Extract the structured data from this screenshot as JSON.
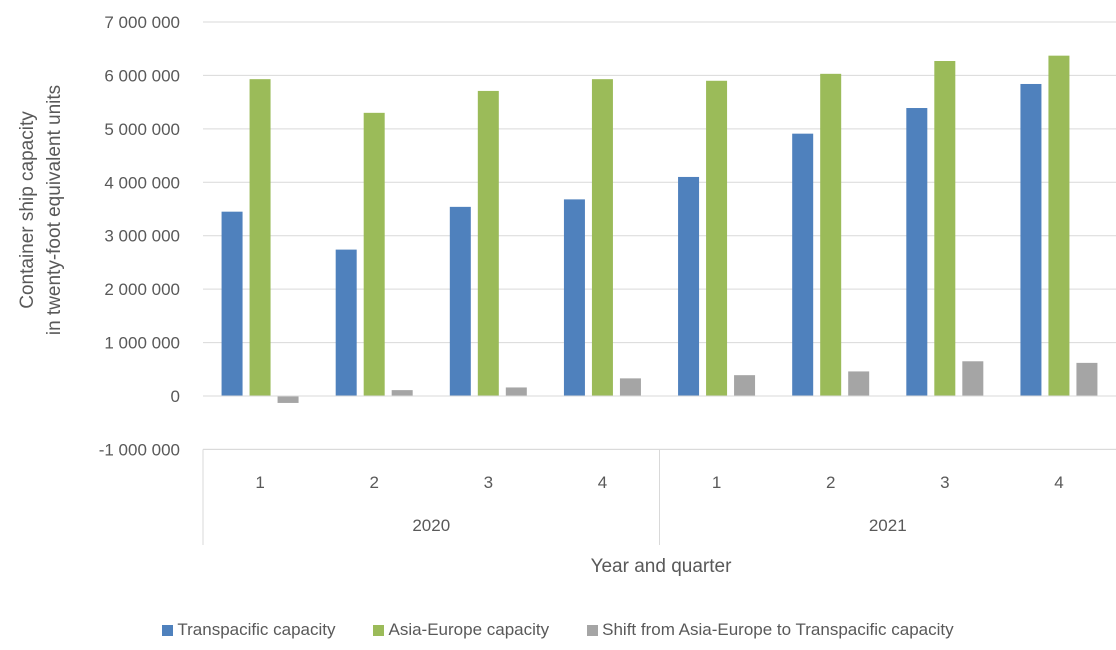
{
  "chart_data": {
    "type": "bar",
    "title": "",
    "xlabel": "Year and quarter",
    "ylabel_lines": [
      "Container ship capacity",
      "in twenty-foot equivalent units"
    ],
    "ylim": [
      -1000000,
      7000000
    ],
    "yticks": [
      -1000000,
      0,
      1000000,
      2000000,
      3000000,
      4000000,
      5000000,
      6000000,
      7000000
    ],
    "ytick_labels": [
      "-1 000 000",
      "0",
      "1 000 000",
      "2 000 000",
      "3 000 000",
      "4 000 000",
      "5 000 000",
      "6 000 000",
      "7 000 000"
    ],
    "categories": [
      "1",
      "2",
      "3",
      "4",
      "1",
      "2",
      "3",
      "4"
    ],
    "groups": [
      {
        "label": "2020",
        "span": 4
      },
      {
        "label": "2021",
        "span": 4
      }
    ],
    "grid": true,
    "legend_position": "bottom",
    "series": [
      {
        "name": "Transpacific capacity",
        "color": "#4f81bd",
        "values": [
          3450000,
          2740000,
          3540000,
          3680000,
          4100000,
          4910000,
          5390000,
          5840000
        ]
      },
      {
        "name": "Asia-Europe capacity",
        "color": "#9bbb59",
        "values": [
          5930000,
          5300000,
          5710000,
          5930000,
          5900000,
          6030000,
          6270000,
          6370000
        ]
      },
      {
        "name": "Shift from Asia-Europe to Transpacific capacity",
        "color": "#a5a5a5",
        "values": [
          -130000,
          110000,
          160000,
          330000,
          390000,
          460000,
          650000,
          620000
        ]
      }
    ]
  }
}
